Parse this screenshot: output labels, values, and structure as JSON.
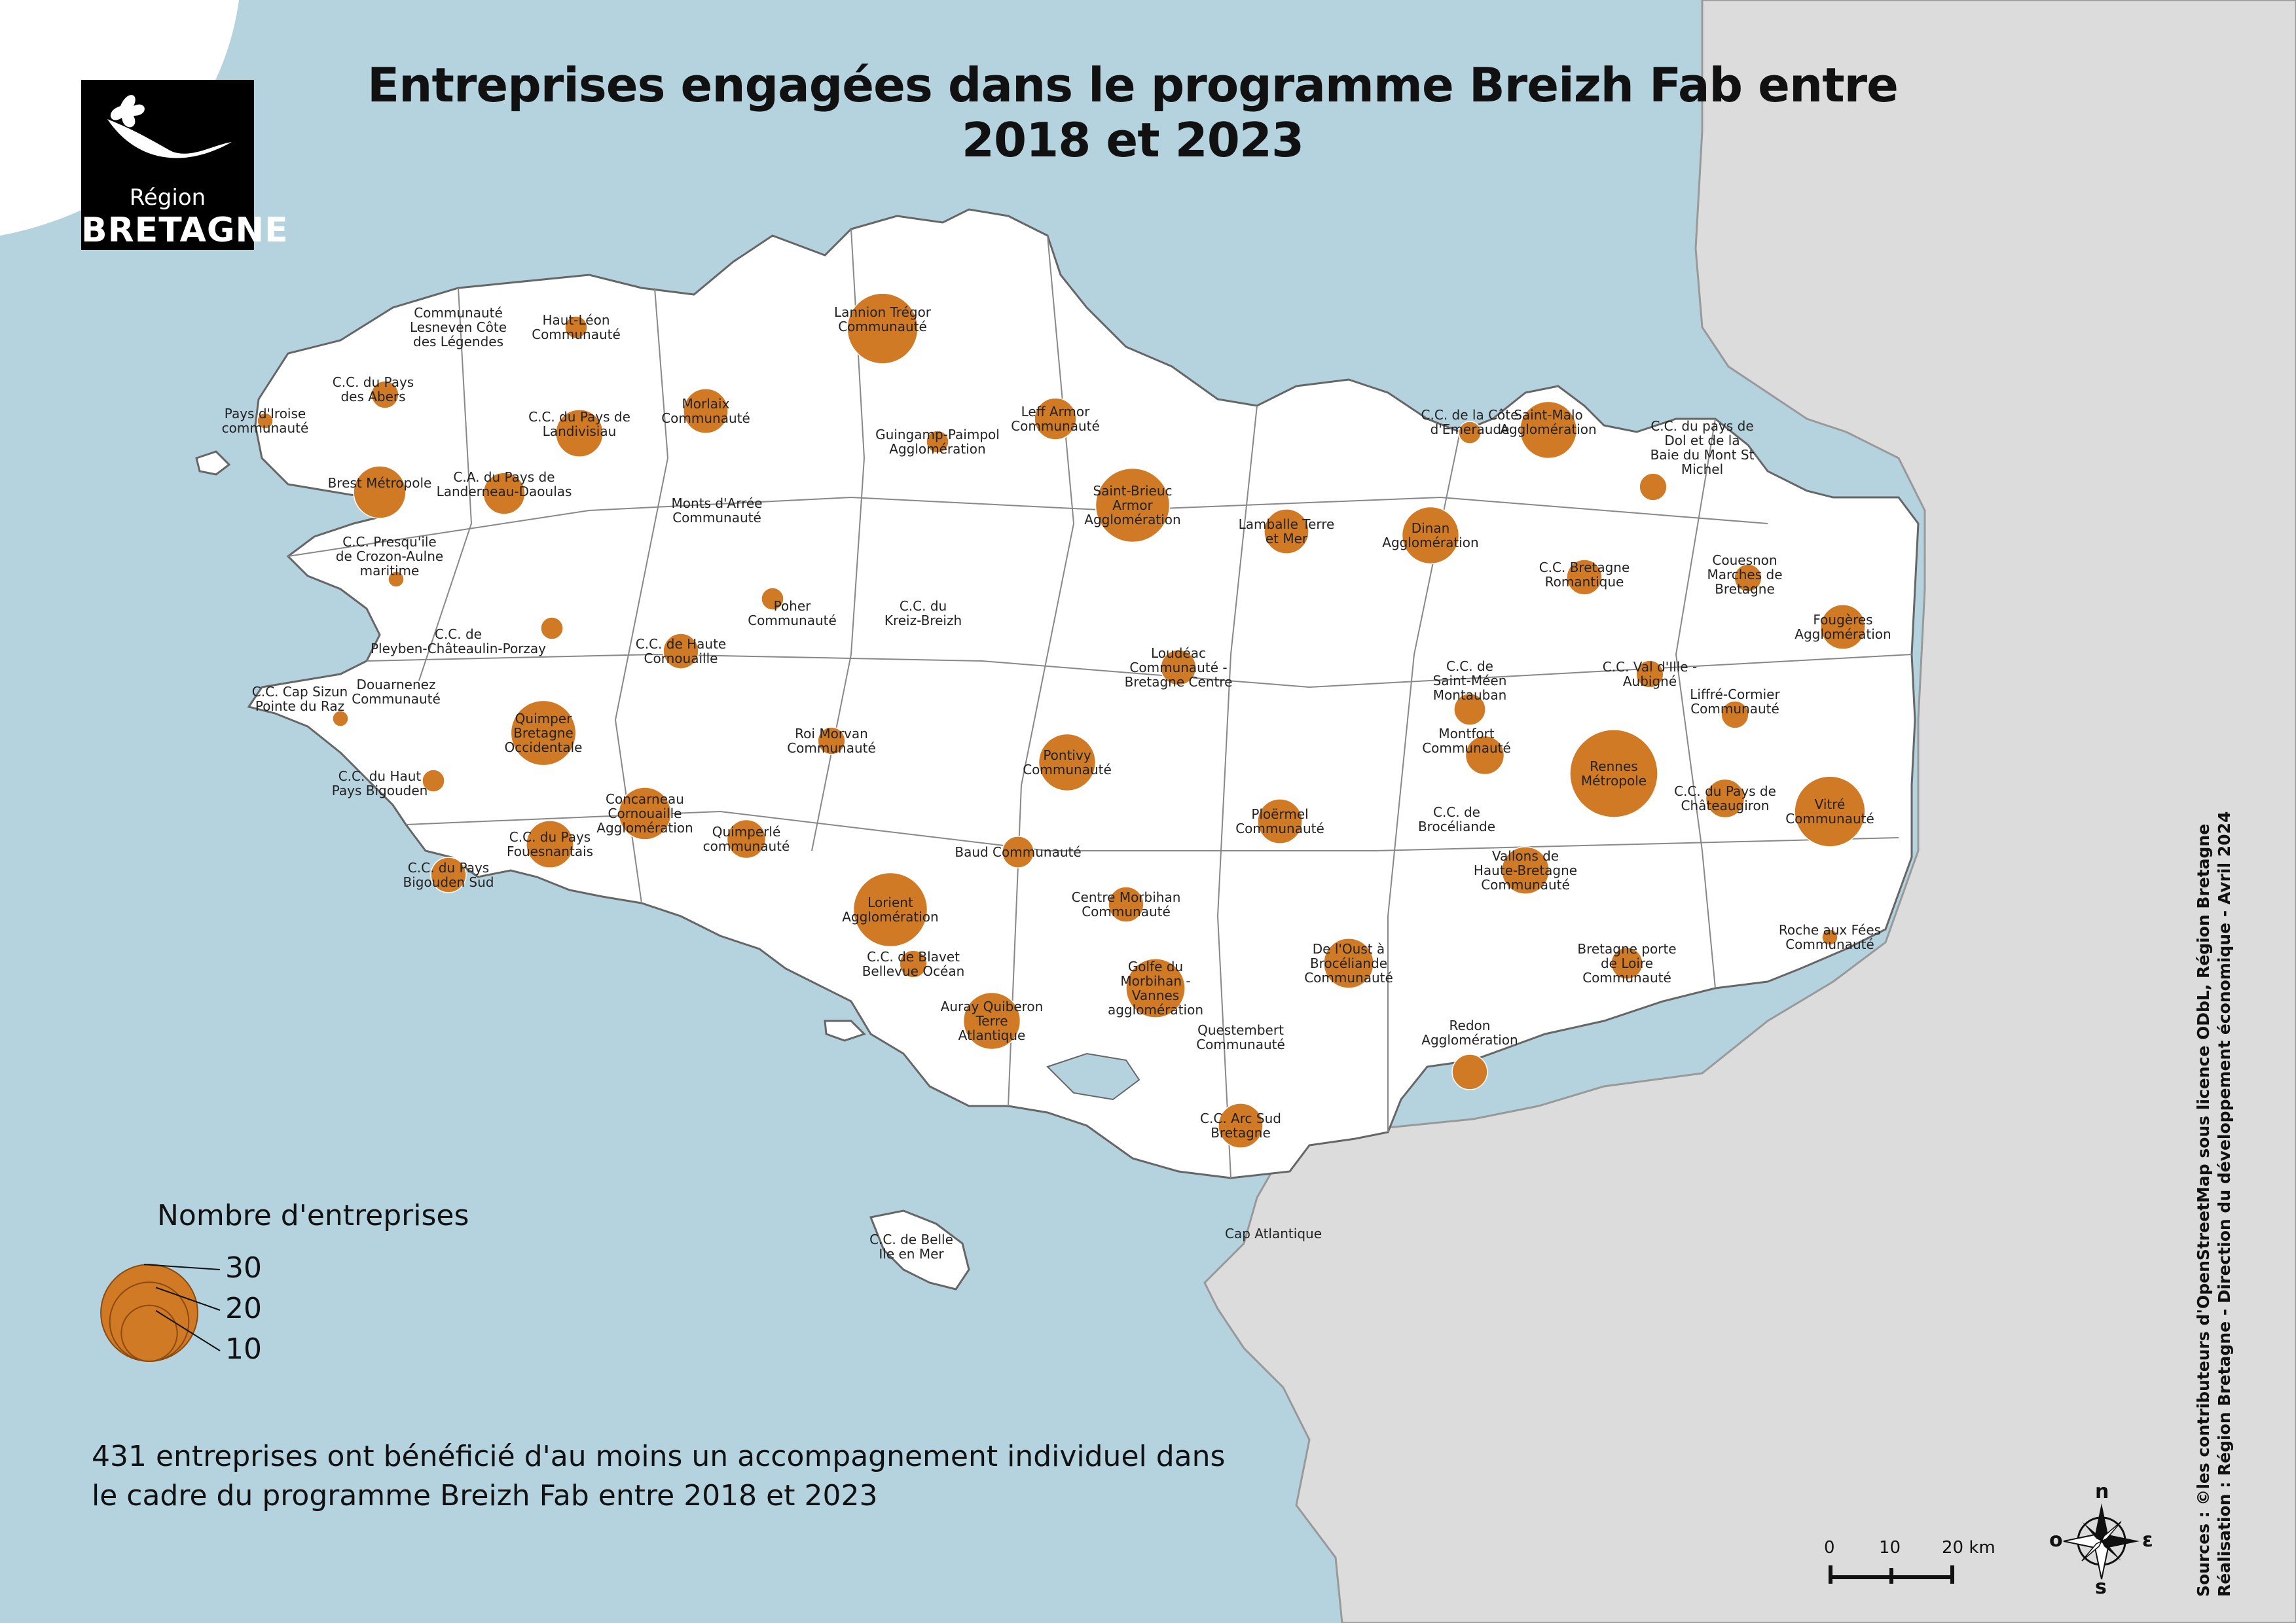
{
  "title": "Entreprises engagées dans le programme Breizh Fab entre 2018 et 2023",
  "logo": {
    "line1": "Région",
    "line2": "BRETAGNE"
  },
  "colors": {
    "sea": "#b5d3de",
    "land": "#ffffff",
    "neighbour": "#dcdcdc",
    "bubble": "#d07a26",
    "border": "#666666"
  },
  "legend": {
    "title": "Nombre d'entreprises",
    "values": [
      "30",
      "20",
      "10"
    ],
    "counts": [
      30,
      20,
      10
    ]
  },
  "note": {
    "line1": "431 entreprises ont bénéficié d'au moins un accompagnement individuel dans",
    "line2": "le cadre du programme Breizh Fab entre 2018 et 2023"
  },
  "scale": {
    "labels": [
      "0",
      "10",
      "20 km"
    ]
  },
  "compass": {
    "n": "n",
    "o": "o",
    "e": "ε",
    "s": "s"
  },
  "credits": {
    "line1": "Sources : ©les contributeurs d'OpenStreetMap sous licence ODbL, Région Bretagne",
    "line2": "Réalisation : Région Bretagne - Direction du développement économique - Avril 2024"
  },
  "epci": [
    {
      "label": [
        "Communauté",
        "Lesneven Côte",
        "des Légendes"
      ],
      "count": 0
    },
    {
      "label": [
        "Haut-Léon",
        "Communauté"
      ],
      "count": 2
    },
    {
      "label": [
        "Lannion Trégor",
        "Communauté"
      ],
      "count": 20
    },
    {
      "label": [
        "C.C. du Pays",
        "des Abers"
      ],
      "count": 3
    },
    {
      "label": [
        "Pays d'Iroise",
        "communauté"
      ],
      "count": 1
    },
    {
      "label": [
        "Morlaix",
        "Communauté"
      ],
      "count": 8
    },
    {
      "label": [
        "C.C. du Pays de",
        "Landivisiau"
      ],
      "count": 9
    },
    {
      "label": [
        "Leff Armor",
        "Communauté"
      ],
      "count": 7
    },
    {
      "label": [
        "Guingamp-Paimpol",
        "Agglomération"
      ],
      "count": 2
    },
    {
      "label": [
        "C.C. de la Côte",
        "d'Emeraude"
      ],
      "count": 2
    },
    {
      "label": [
        "Saint-Malo",
        "Agglomération"
      ],
      "count": 13
    },
    {
      "label": [
        "C.C. du pays de",
        "Dol et de la",
        "Baie du Mont St",
        "Michel"
      ],
      "count": 3
    },
    {
      "label": [
        "Brest Métropole"
      ],
      "count": 11
    },
    {
      "label": [
        "C.A. du Pays de",
        "Landerneau-Daoulas"
      ],
      "count": 7
    },
    {
      "label": [
        "Monts d'Arrée",
        "Communauté"
      ],
      "count": 0
    },
    {
      "label": [
        "Saint-Brieuc",
        "Armor",
        "Agglomération"
      ],
      "count": 22
    },
    {
      "label": [
        "Lamballe Terre",
        "et Mer"
      ],
      "count": 8
    },
    {
      "label": [
        "Dinan",
        "Agglomération"
      ],
      "count": 13
    },
    {
      "label": [
        "C.C. Presqu'ile",
        "de Crozon-Aulne",
        "maritime"
      ],
      "count": 1
    },
    {
      "label": [
        "C.C. Bretagne",
        "Romantique"
      ],
      "count": 5
    },
    {
      "label": [
        "Couesnon",
        "Marches de",
        "Bretagne"
      ],
      "count": 3
    },
    {
      "label": [
        "Poher",
        "Communauté"
      ],
      "count": 2
    },
    {
      "label": [
        "C.C. du",
        "Kreiz-Breizh"
      ],
      "count": 0
    },
    {
      "label": [
        "Fougères",
        "Agglomération"
      ],
      "count": 8
    },
    {
      "label": [
        "C.C. de",
        "Pleyben-Châteaulin-Porzay"
      ],
      "count": 2
    },
    {
      "label": [
        "C.C. de Haute",
        "Cornouaille"
      ],
      "count": 5
    },
    {
      "label": [
        "Loudéac",
        "Communauté -",
        "Bretagne Centre"
      ],
      "count": 5
    },
    {
      "label": [
        "C.C. Val d'Ille -",
        "Aubigné"
      ],
      "count": 3
    },
    {
      "label": [
        "C.C. de",
        "Saint-Méen",
        "Montauban"
      ],
      "count": 4
    },
    {
      "label": [
        "C.C. Cap Sizun",
        "Pointe du Raz"
      ],
      "count": 1
    },
    {
      "label": [
        "Douarnenez",
        "Communauté"
      ],
      "count": 0
    },
    {
      "label": [
        "Liffré-Cormier",
        "Communauté"
      ],
      "count": 3
    },
    {
      "label": [
        "Quimper",
        "Bretagne",
        "Occidentale"
      ],
      "count": 17
    },
    {
      "label": [
        "Roi Morvan",
        "Communauté"
      ],
      "count": 3
    },
    {
      "label": [
        "Montfort",
        "Communauté"
      ],
      "count": 6
    },
    {
      "label": [
        "Pontivy",
        "Communauté"
      ],
      "count": 13
    },
    {
      "label": [
        "Rennes",
        "Métropole"
      ],
      "count": 31
    },
    {
      "label": [
        "C.C. du Haut",
        "Pays Bigouden"
      ],
      "count": 2
    },
    {
      "label": [
        "Vitré",
        "Communauté"
      ],
      "count": 20
    },
    {
      "label": [
        "Concarneau",
        "Cornouaille",
        "Agglomération"
      ],
      "count": 11
    },
    {
      "label": [
        "C.C. du Pays de",
        "Châteaugiron"
      ],
      "count": 6
    },
    {
      "label": [
        "Ploërmel",
        "Communauté"
      ],
      "count": 8
    },
    {
      "label": [
        "C.C. de",
        "Brocéliande"
      ],
      "count": 0
    },
    {
      "label": [
        "C.C. du Pays",
        "Fouesnantais"
      ],
      "count": 9
    },
    {
      "label": [
        "Quimperlé",
        "communauté"
      ],
      "count": 6
    },
    {
      "label": [
        "Baud Communauté"
      ],
      "count": 4
    },
    {
      "label": [
        "Vallons de",
        "Haute-Bretagne",
        "Communauté"
      ],
      "count": 9
    },
    {
      "label": [
        "C.C. du Pays",
        "Bigouden Sud"
      ],
      "count": 5
    },
    {
      "label": [
        "Lorient",
        "Agglomération"
      ],
      "count": 22
    },
    {
      "label": [
        "Centre Morbihan",
        "Communauté"
      ],
      "count": 5
    },
    {
      "label": [
        "Roche aux Fées",
        "Communauté"
      ],
      "count": 1
    },
    {
      "label": [
        "De l'Oust à",
        "Brocéliande",
        "Communauté"
      ],
      "count": 10
    },
    {
      "label": [
        "Bretagne porte",
        "de Loire",
        "Communauté"
      ],
      "count": 4
    },
    {
      "label": [
        "C.C. de Blavet",
        "Bellevue Océan"
      ],
      "count": 3
    },
    {
      "label": [
        "Golfe du",
        "Morbihan -",
        "Vannes",
        "agglomération"
      ],
      "count": 14
    },
    {
      "label": [
        "Auray Quiberon",
        "Terre",
        "Atlantique"
      ],
      "count": 13
    },
    {
      "label": [
        "Questembert",
        "Communauté"
      ],
      "count": 0
    },
    {
      "label": [
        "Redon",
        "Agglomération"
      ],
      "count": 5
    },
    {
      "label": [
        "C.C. Arc Sud",
        "Bretagne"
      ],
      "count": 8
    },
    {
      "label": [
        "Cap Atlantique"
      ],
      "count": 0
    },
    {
      "label": [
        "C.C. de Belle",
        "Ile en Mer"
      ],
      "count": 0
    }
  ]
}
